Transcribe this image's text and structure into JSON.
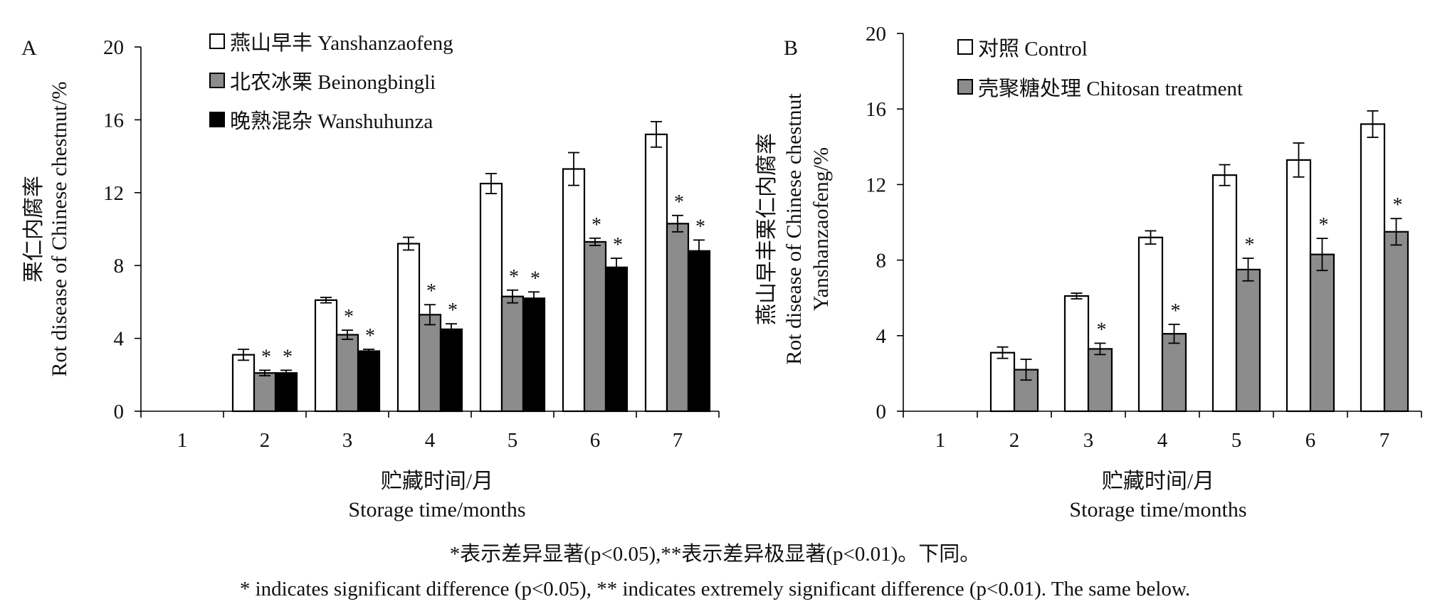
{
  "captions": {
    "chinese": "*表示差异显著(p<0.05),**表示差异极显著(p<0.01)。下同。",
    "english": "* indicates significant difference (p<0.05), ** indicates extremely significant difference (p<0.01). The same below."
  },
  "colors": {
    "white": "#ffffff",
    "gray": "#8c8c8c",
    "black": "#000000"
  },
  "chart_data": [
    {
      "panel": "A",
      "type": "bar",
      "xlabel_zh": "贮藏时间/月",
      "xlabel_en": "Storage time/months",
      "ylabel_lines": [
        "栗仁内腐率",
        "Rot disease of Chinese chestnut/%"
      ],
      "ylim": [
        0,
        20
      ],
      "yticks": [
        0,
        4,
        8,
        12,
        16,
        20
      ],
      "categories": [
        "1",
        "2",
        "3",
        "4",
        "5",
        "6",
        "7"
      ],
      "legend_position": "top-left",
      "series": [
        {
          "name": "燕山早丰  Yanshanzaofeng",
          "color": "white",
          "values": [
            0,
            3.1,
            6.1,
            9.2,
            12.5,
            13.3,
            15.2
          ],
          "errors": [
            0,
            0.3,
            0.15,
            0.35,
            0.55,
            0.9,
            0.7
          ],
          "sig": [
            "",
            "",
            "",
            "",
            "",
            "",
            ""
          ]
        },
        {
          "name": "北农冰栗  Beinongbingli",
          "color": "gray",
          "values": [
            0,
            2.1,
            4.2,
            5.3,
            6.3,
            9.3,
            10.3
          ],
          "errors": [
            0,
            0.15,
            0.25,
            0.55,
            0.35,
            0.2,
            0.45
          ],
          "sig": [
            "",
            "*",
            "*",
            "*",
            "*",
            "*",
            "*"
          ]
        },
        {
          "name": "晚熟混杂  Wanshuhunza",
          "color": "black",
          "values": [
            0,
            2.1,
            3.3,
            4.5,
            6.2,
            7.9,
            8.8
          ],
          "errors": [
            0,
            0.15,
            0.1,
            0.3,
            0.35,
            0.5,
            0.6
          ],
          "sig": [
            "",
            "*",
            "*",
            "*",
            "*",
            "*",
            "*"
          ]
        }
      ]
    },
    {
      "panel": "B",
      "type": "bar",
      "xlabel_zh": "贮藏时间/月",
      "xlabel_en": "Storage time/months",
      "ylabel_lines": [
        "燕山早丰栗仁内腐率",
        "Rot disease of Chinese chestnut",
        "Yanshanzaofeng/%"
      ],
      "ylim": [
        0,
        20
      ],
      "yticks": [
        0,
        4,
        8,
        12,
        16,
        20
      ],
      "categories": [
        "1",
        "2",
        "3",
        "4",
        "5",
        "6",
        "7"
      ],
      "legend_position": "top-left",
      "series": [
        {
          "name": "对照  Control",
          "color": "white",
          "values": [
            0,
            3.1,
            6.1,
            9.2,
            12.5,
            13.3,
            15.2
          ],
          "errors": [
            0,
            0.3,
            0.15,
            0.35,
            0.55,
            0.9,
            0.7
          ],
          "sig": [
            "",
            "",
            "",
            "",
            "",
            "",
            ""
          ]
        },
        {
          "name": "壳聚糖处理  Chitosan treatment",
          "color": "gray",
          "values": [
            0,
            2.2,
            3.3,
            4.1,
            7.5,
            8.3,
            9.5
          ],
          "errors": [
            0,
            0.55,
            0.3,
            0.5,
            0.6,
            0.85,
            0.7
          ],
          "sig": [
            "",
            "",
            "*",
            "*",
            "*",
            "*",
            "*"
          ]
        }
      ]
    }
  ]
}
